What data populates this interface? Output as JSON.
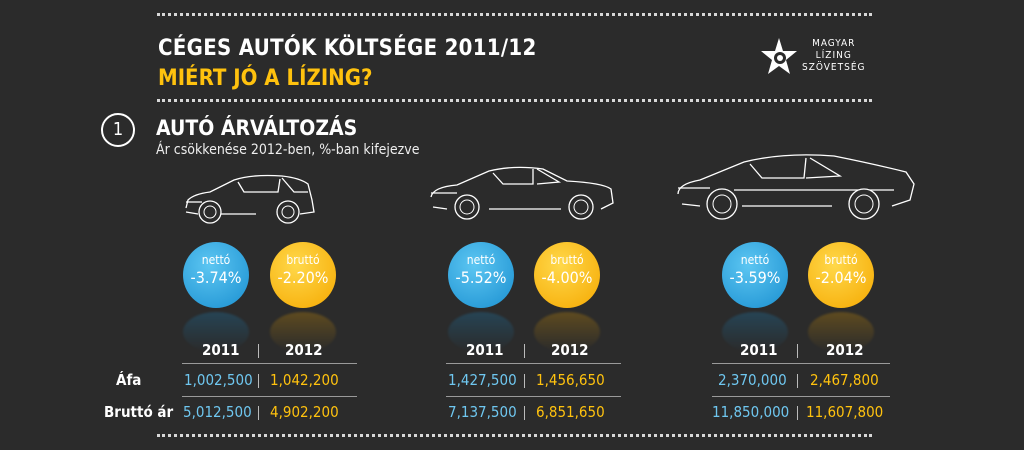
{
  "header": {
    "title": "CÉGES AUTÓK KÖLTSÉGE 2011/12",
    "subtitle": "MIÉRT JÓ A LÍZING?",
    "logo_line1": "MAGYAR",
    "logo_line2": "LÍZING",
    "logo_line3": "SZÖVETSÉG"
  },
  "section": {
    "number": "1",
    "title": "AUTÓ ÁRVÁLTOZÁS",
    "subtitle": "Ár csökkenése 2012-ben, %-ban kifejezve"
  },
  "colors": {
    "netto": "#1a8fd0",
    "brutto": "#f5a800",
    "background": "#2b2b2b"
  },
  "labels": {
    "netto": "nettó",
    "brutto": "bruttó",
    "afa": "Áfa",
    "brutto_ar": "Bruttó ár"
  },
  "cars": [
    {
      "netto": "-3.74%",
      "brutto": "-2.20%",
      "year1": "2011",
      "year2": "2012",
      "afa_2011": "1,002,500",
      "afa_2012": "1,042,200",
      "brutto_2011": "5,012,500",
      "brutto_2012": "4,902,200"
    },
    {
      "netto": "-5.52%",
      "brutto": "-4.00%",
      "year1": "2011",
      "year2": "2012",
      "afa_2011": "1,427,500",
      "afa_2012": "1,456,650",
      "brutto_2011": "7,137,500",
      "brutto_2012": "6,851,650"
    },
    {
      "netto": "-3.59%",
      "brutto": "-2.04%",
      "year1": "2011",
      "year2": "2012",
      "afa_2011": "2,370,000",
      "afa_2012": "2,467,800",
      "brutto_2011": "11,850,000",
      "brutto_2012": "11,607,800"
    }
  ]
}
